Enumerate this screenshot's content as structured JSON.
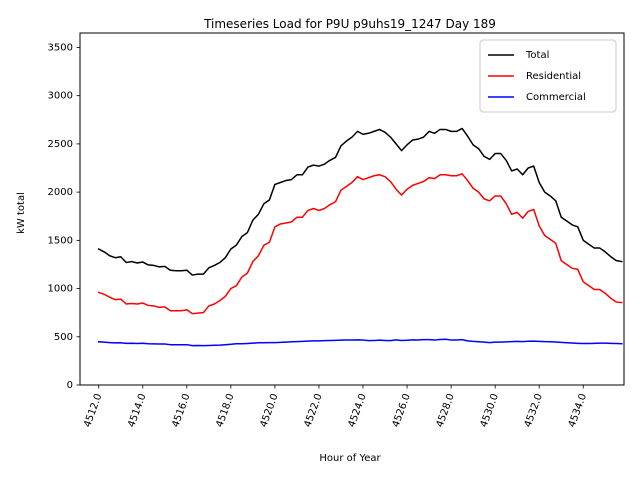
{
  "chart_data": {
    "type": "line",
    "title": "Timeseries Load for P9U p9uhs19_1247  Day 189",
    "xlabel": "Hour of Year",
    "ylabel": "kW total",
    "xlim": [
      4511.15,
      4535.85
    ],
    "ylim": [
      0,
      3650
    ],
    "x_ticks": [
      4512,
      4514,
      4516,
      4518,
      4520,
      4522,
      4524,
      4526,
      4528,
      4530,
      4532,
      4534
    ],
    "x_tick_labels": [
      "4512.0",
      "4514.0",
      "4516.0",
      "4518.0",
      "4520.0",
      "4522.0",
      "4524.0",
      "4526.0",
      "4528.0",
      "4530.0",
      "4532.0",
      "4534.0"
    ],
    "y_ticks": [
      0,
      500,
      1000,
      1500,
      2000,
      2500,
      3000,
      3500
    ],
    "y_tick_labels": [
      "0",
      "500",
      "1000",
      "1500",
      "2000",
      "2500",
      "3000",
      "3500"
    ],
    "grid": false,
    "legend_position": "upper right",
    "x_start": 4512,
    "x_step": 0.25,
    "series": [
      {
        "name": "Total",
        "color": "#000000",
        "values": [
          1410,
          1380,
          1340,
          1320,
          1330,
          1270,
          1280,
          1265,
          1275,
          1245,
          1240,
          1225,
          1230,
          1190,
          1185,
          1185,
          1190,
          1140,
          1150,
          1150,
          1215,
          1240,
          1270,
          1320,
          1410,
          1450,
          1540,
          1580,
          1710,
          1770,
          1880,
          1920,
          2080,
          2100,
          2120,
          2130,
          2180,
          2180,
          2260,
          2280,
          2270,
          2290,
          2330,
          2360,
          2480,
          2530,
          2570,
          2630,
          2600,
          2610,
          2630,
          2650,
          2620,
          2570,
          2500,
          2430,
          2490,
          2540,
          2550,
          2570,
          2630,
          2610,
          2650,
          2650,
          2630,
          2630,
          2660,
          2580,
          2490,
          2450,
          2370,
          2340,
          2400,
          2400,
          2330,
          2220,
          2240,
          2180,
          2250,
          2270,
          2100,
          2000,
          1960,
          1910,
          1740,
          1700,
          1660,
          1640,
          1500,
          1460,
          1420,
          1420,
          1380,
          1330,
          1290,
          1280
        ]
      },
      {
        "name": "Residential",
        "color": "#ff0000",
        "values": [
          960,
          940,
          910,
          885,
          890,
          840,
          845,
          840,
          850,
          825,
          820,
          805,
          810,
          770,
          770,
          770,
          780,
          740,
          745,
          750,
          820,
          840,
          875,
          920,
          1000,
          1030,
          1120,
          1160,
          1280,
          1340,
          1450,
          1480,
          1640,
          1670,
          1680,
          1690,
          1740,
          1740,
          1810,
          1830,
          1810,
          1830,
          1870,
          1900,
          2020,
          2060,
          2100,
          2160,
          2130,
          2150,
          2170,
          2180,
          2160,
          2110,
          2030,
          1970,
          2030,
          2070,
          2090,
          2110,
          2150,
          2140,
          2180,
          2180,
          2170,
          2170,
          2190,
          2120,
          2040,
          2000,
          1930,
          1910,
          1960,
          1960,
          1880,
          1770,
          1790,
          1730,
          1800,
          1820,
          1650,
          1550,
          1510,
          1470,
          1290,
          1250,
          1210,
          1200,
          1070,
          1030,
          990,
          990,
          950,
          900,
          860,
          855
        ]
      },
      {
        "name": "Commercial",
        "color": "#0000ff",
        "values": [
          448,
          444,
          440,
          437,
          438,
          432,
          433,
          431,
          433,
          428,
          427,
          425,
          425,
          418,
          417,
          417,
          418,
          408,
          410,
          408,
          410,
          412,
          414,
          418,
          422,
          428,
          428,
          430,
          434,
          438,
          438,
          440,
          440,
          442,
          445,
          448,
          450,
          452,
          455,
          457,
          458,
          460,
          461,
          463,
          465,
          466,
          467,
          468,
          466,
          460,
          462,
          465,
          462,
          460,
          468,
          462,
          464,
          468,
          466,
          470,
          470,
          466,
          472,
          474,
          466,
          466,
          470,
          458,
          452,
          448,
          444,
          440,
          444,
          445,
          447,
          450,
          452,
          450,
          453,
          455,
          452,
          450,
          448,
          446,
          442,
          438,
          435,
          432,
          430,
          430,
          432,
          434,
          434,
          432,
          430,
          428
        ]
      }
    ]
  }
}
